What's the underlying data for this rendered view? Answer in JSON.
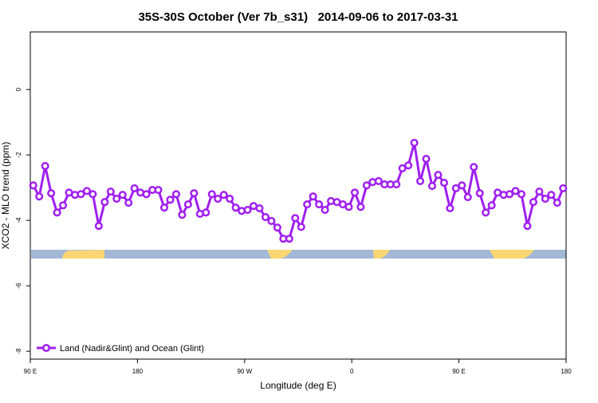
{
  "chart_data": {
    "type": "line",
    "title": "35S-30S October (Ver 7b_s31)   2014-09-06 to 2017-03-31",
    "x_label": "Longitude (deg E)",
    "y_label": "XCO2 - MLO trend (ppm)",
    "x": [
      92.5,
      97.5,
      102.5,
      107.5,
      112.5,
      117.5,
      122.5,
      127.5,
      132.5,
      137.5,
      142.5,
      147.5,
      152.5,
      157.5,
      162.5,
      167.5,
      172.5,
      177.5,
      182.5,
      187.5,
      192.5,
      197.5,
      202.5,
      207.5,
      212.5,
      217.5,
      222.5,
      227.5,
      232.5,
      237.5,
      242.5,
      247.5,
      252.5,
      257.5,
      262.5,
      267.5,
      272.5,
      277.5,
      282.5,
      287.5,
      292.5,
      297.5,
      302.5,
      307.5,
      312.5,
      317.5,
      322.5,
      327.5,
      332.5,
      337.5,
      342.5,
      347.5,
      352.5,
      357.5,
      362.5,
      367.5,
      372.5,
      377.5,
      382.5,
      387.5,
      392.5,
      397.5,
      402.5,
      407.5,
      412.5,
      417.5,
      422.5,
      427.5,
      432.5,
      437.5,
      442.5,
      447.5,
      452.5,
      457.5,
      462.5,
      467.5,
      472.5,
      477.5,
      482.5,
      487.5,
      492.5,
      497.5,
      502.5,
      507.5,
      512.5,
      517.5,
      522.5,
      527.5,
      532.5,
      537.5
    ],
    "series": [
      {
        "name": "Land (Nadir&Glint) and Ocean (Glint)",
        "color": "#a020f0",
        "values": [
          -2.93,
          -3.27,
          -2.34,
          -3.17,
          -3.76,
          -3.54,
          -3.15,
          -3.22,
          -3.2,
          -3.1,
          -3.2,
          -4.17,
          -3.44,
          -3.12,
          -3.34,
          -3.22,
          -3.46,
          -3.02,
          -3.15,
          -3.2,
          -3.07,
          -3.07,
          -3.61,
          -3.37,
          -3.2,
          -3.83,
          -3.51,
          -3.17,
          -3.8,
          -3.76,
          -3.2,
          -3.34,
          -3.22,
          -3.34,
          -3.61,
          -3.71,
          -3.68,
          -3.56,
          -3.63,
          -3.9,
          -4.02,
          -4.22,
          -4.56,
          -4.56,
          -3.93,
          -4.2,
          -3.51,
          -3.27,
          -3.51,
          -3.68,
          -3.41,
          -3.44,
          -3.51,
          -3.59,
          -3.15,
          -3.59,
          -2.93,
          -2.83,
          -2.8,
          -2.9,
          -2.9,
          -2.9,
          -2.41,
          -2.32,
          -1.63,
          -2.8,
          -2.12,
          -2.95,
          -2.61,
          -2.85,
          -3.63,
          -3.02,
          -2.93,
          -3.29,
          -2.37,
          -3.17,
          -3.76,
          -3.54,
          -3.15,
          -3.22,
          -3.2,
          -3.1,
          -3.2,
          -4.17,
          -3.44,
          -3.12,
          -3.34,
          -3.22,
          -3.46,
          -3.02
        ]
      }
    ],
    "xlim": [
      90,
      540
    ],
    "xticks": [
      {
        "value": 90,
        "label": "90 E"
      },
      180,
      {
        "value": 270,
        "label": "90 W"
      },
      {
        "value": 360,
        "label": "0"
      },
      {
        "value": 450,
        "label": "90 E"
      },
      {
        "value": 540,
        "label": "180"
      }
    ],
    "ylim": [
      -8.24,
      1.76
    ],
    "yticks": [
      0,
      -2,
      -4,
      -6,
      -8
    ],
    "legend": "bottom-left"
  }
}
